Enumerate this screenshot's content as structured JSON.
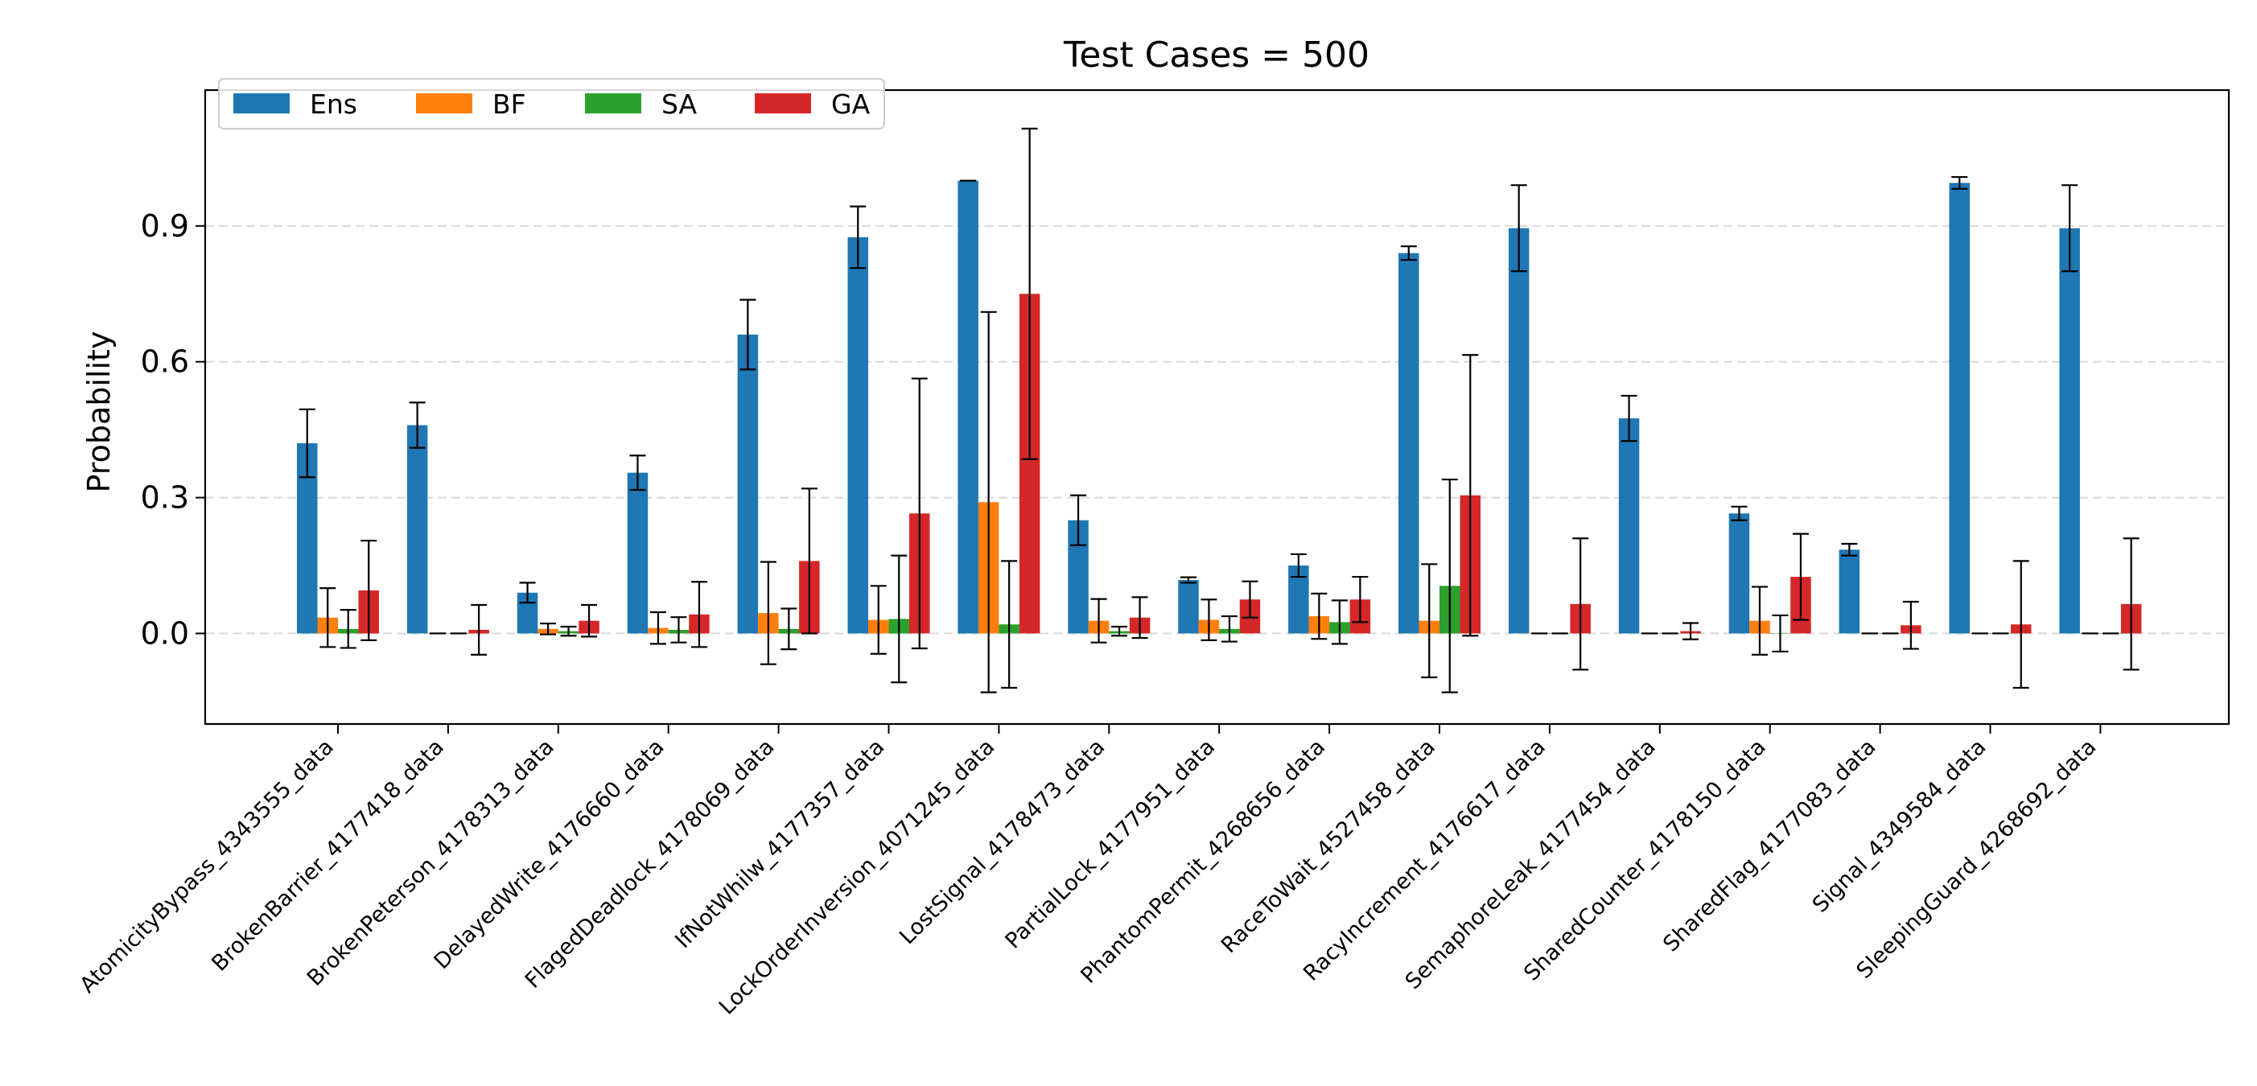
{
  "chart_data": {
    "type": "bar",
    "title": "Test Cases = 500",
    "xlabel": "",
    "ylabel": "Probability",
    "ylim": [
      -0.2,
      1.2
    ],
    "yticks": [
      0.0,
      0.3,
      0.6,
      0.9
    ],
    "ytick_labels": [
      "0.0",
      "0.3",
      "0.6",
      "0.9"
    ],
    "grid": "horizontal dashed",
    "legend_position": "top-left",
    "categories": [
      "AtomicityBypass_4343555_data",
      "BrokenBarrier_4177418_data",
      "BrokenPeterson_4178313_data",
      "DelayedWrite_4176660_data",
      "FlagedDeadlock_4178069_data",
      "IfNotWhilw_4177357_data",
      "LockOrderInversion_4071245_data",
      "LostSignal_4178473_data",
      "PartialLock_4177951_data",
      "PhantomPermit_4268656_data",
      "RaceToWait_4527458_data",
      "RacyIncrement_4176617_data",
      "SemaphoreLeak_4177454_data",
      "SharedCounter_4178150_data",
      "SharedFlag_4177083_data",
      "Signal_4349584_data",
      "SleepingGuard_4268692_data"
    ],
    "series": [
      {
        "name": "Ens",
        "color": "#1f77b4",
        "values": [
          0.42,
          0.46,
          0.09,
          0.355,
          0.66,
          0.875,
          1.0,
          0.25,
          0.118,
          0.15,
          0.84,
          0.895,
          0.475,
          0.265,
          0.185,
          0.995,
          0.895
        ],
        "errors": [
          0.075,
          0.05,
          0.022,
          0.038,
          0.077,
          0.068,
          0.0,
          0.055,
          0.006,
          0.025,
          0.015,
          0.095,
          0.05,
          0.015,
          0.013,
          0.013,
          0.095
        ]
      },
      {
        "name": "BF",
        "color": "#ff7f0e",
        "values": [
          0.035,
          0.0,
          0.01,
          0.012,
          0.045,
          0.03,
          0.29,
          0.028,
          0.03,
          0.038,
          0.028,
          0.0,
          0.0,
          0.028,
          0.0,
          0.0,
          0.0
        ],
        "errors": [
          0.065,
          0.0,
          0.012,
          0.035,
          0.113,
          0.075,
          0.42,
          0.048,
          0.045,
          0.05,
          0.125,
          0.0,
          0.0,
          0.075,
          0.0,
          0.0,
          0.0
        ]
      },
      {
        "name": "SA",
        "color": "#2ca02c",
        "values": [
          0.01,
          0.0,
          0.005,
          0.008,
          0.01,
          0.032,
          0.02,
          0.005,
          0.01,
          0.025,
          0.105,
          0.0,
          0.0,
          0.0,
          0.0,
          0.0,
          0.0
        ],
        "errors": [
          0.042,
          0.0,
          0.01,
          0.028,
          0.045,
          0.14,
          0.14,
          0.01,
          0.028,
          0.048,
          0.235,
          0.0,
          0.0,
          0.04,
          0.0,
          0.0,
          0.0
        ]
      },
      {
        "name": "GA",
        "color": "#d62728",
        "values": [
          0.095,
          0.008,
          0.028,
          0.042,
          0.16,
          0.265,
          0.75,
          0.035,
          0.075,
          0.075,
          0.305,
          0.065,
          0.005,
          0.125,
          0.018,
          0.02,
          0.065
        ],
        "errors": [
          0.11,
          0.055,
          0.035,
          0.072,
          0.16,
          0.298,
          0.365,
          0.045,
          0.04,
          0.05,
          0.31,
          0.145,
          0.018,
          0.095,
          0.052,
          0.14,
          0.145
        ]
      }
    ]
  }
}
